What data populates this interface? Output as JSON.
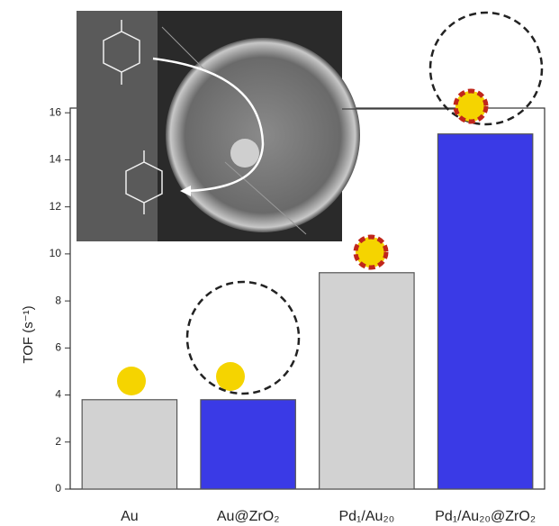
{
  "chart_data": {
    "type": "bar",
    "y_label": "TOF (s⁻¹)",
    "categories": [
      "Au",
      "Au@ZrO₂",
      "Pd₁/Au₂₀",
      "Pd₁/Au₂₀@ZrO₂"
    ],
    "values": [
      3.8,
      3.8,
      9.2,
      15.1
    ],
    "colors": [
      "#d2d2d2",
      "#3a3ae6",
      "#d2d2d2",
      "#3a3ae6"
    ],
    "ylim": [
      0,
      16.2
    ],
    "yticks": [
      0,
      2,
      4,
      6,
      8,
      10,
      12,
      14,
      16
    ]
  }
}
